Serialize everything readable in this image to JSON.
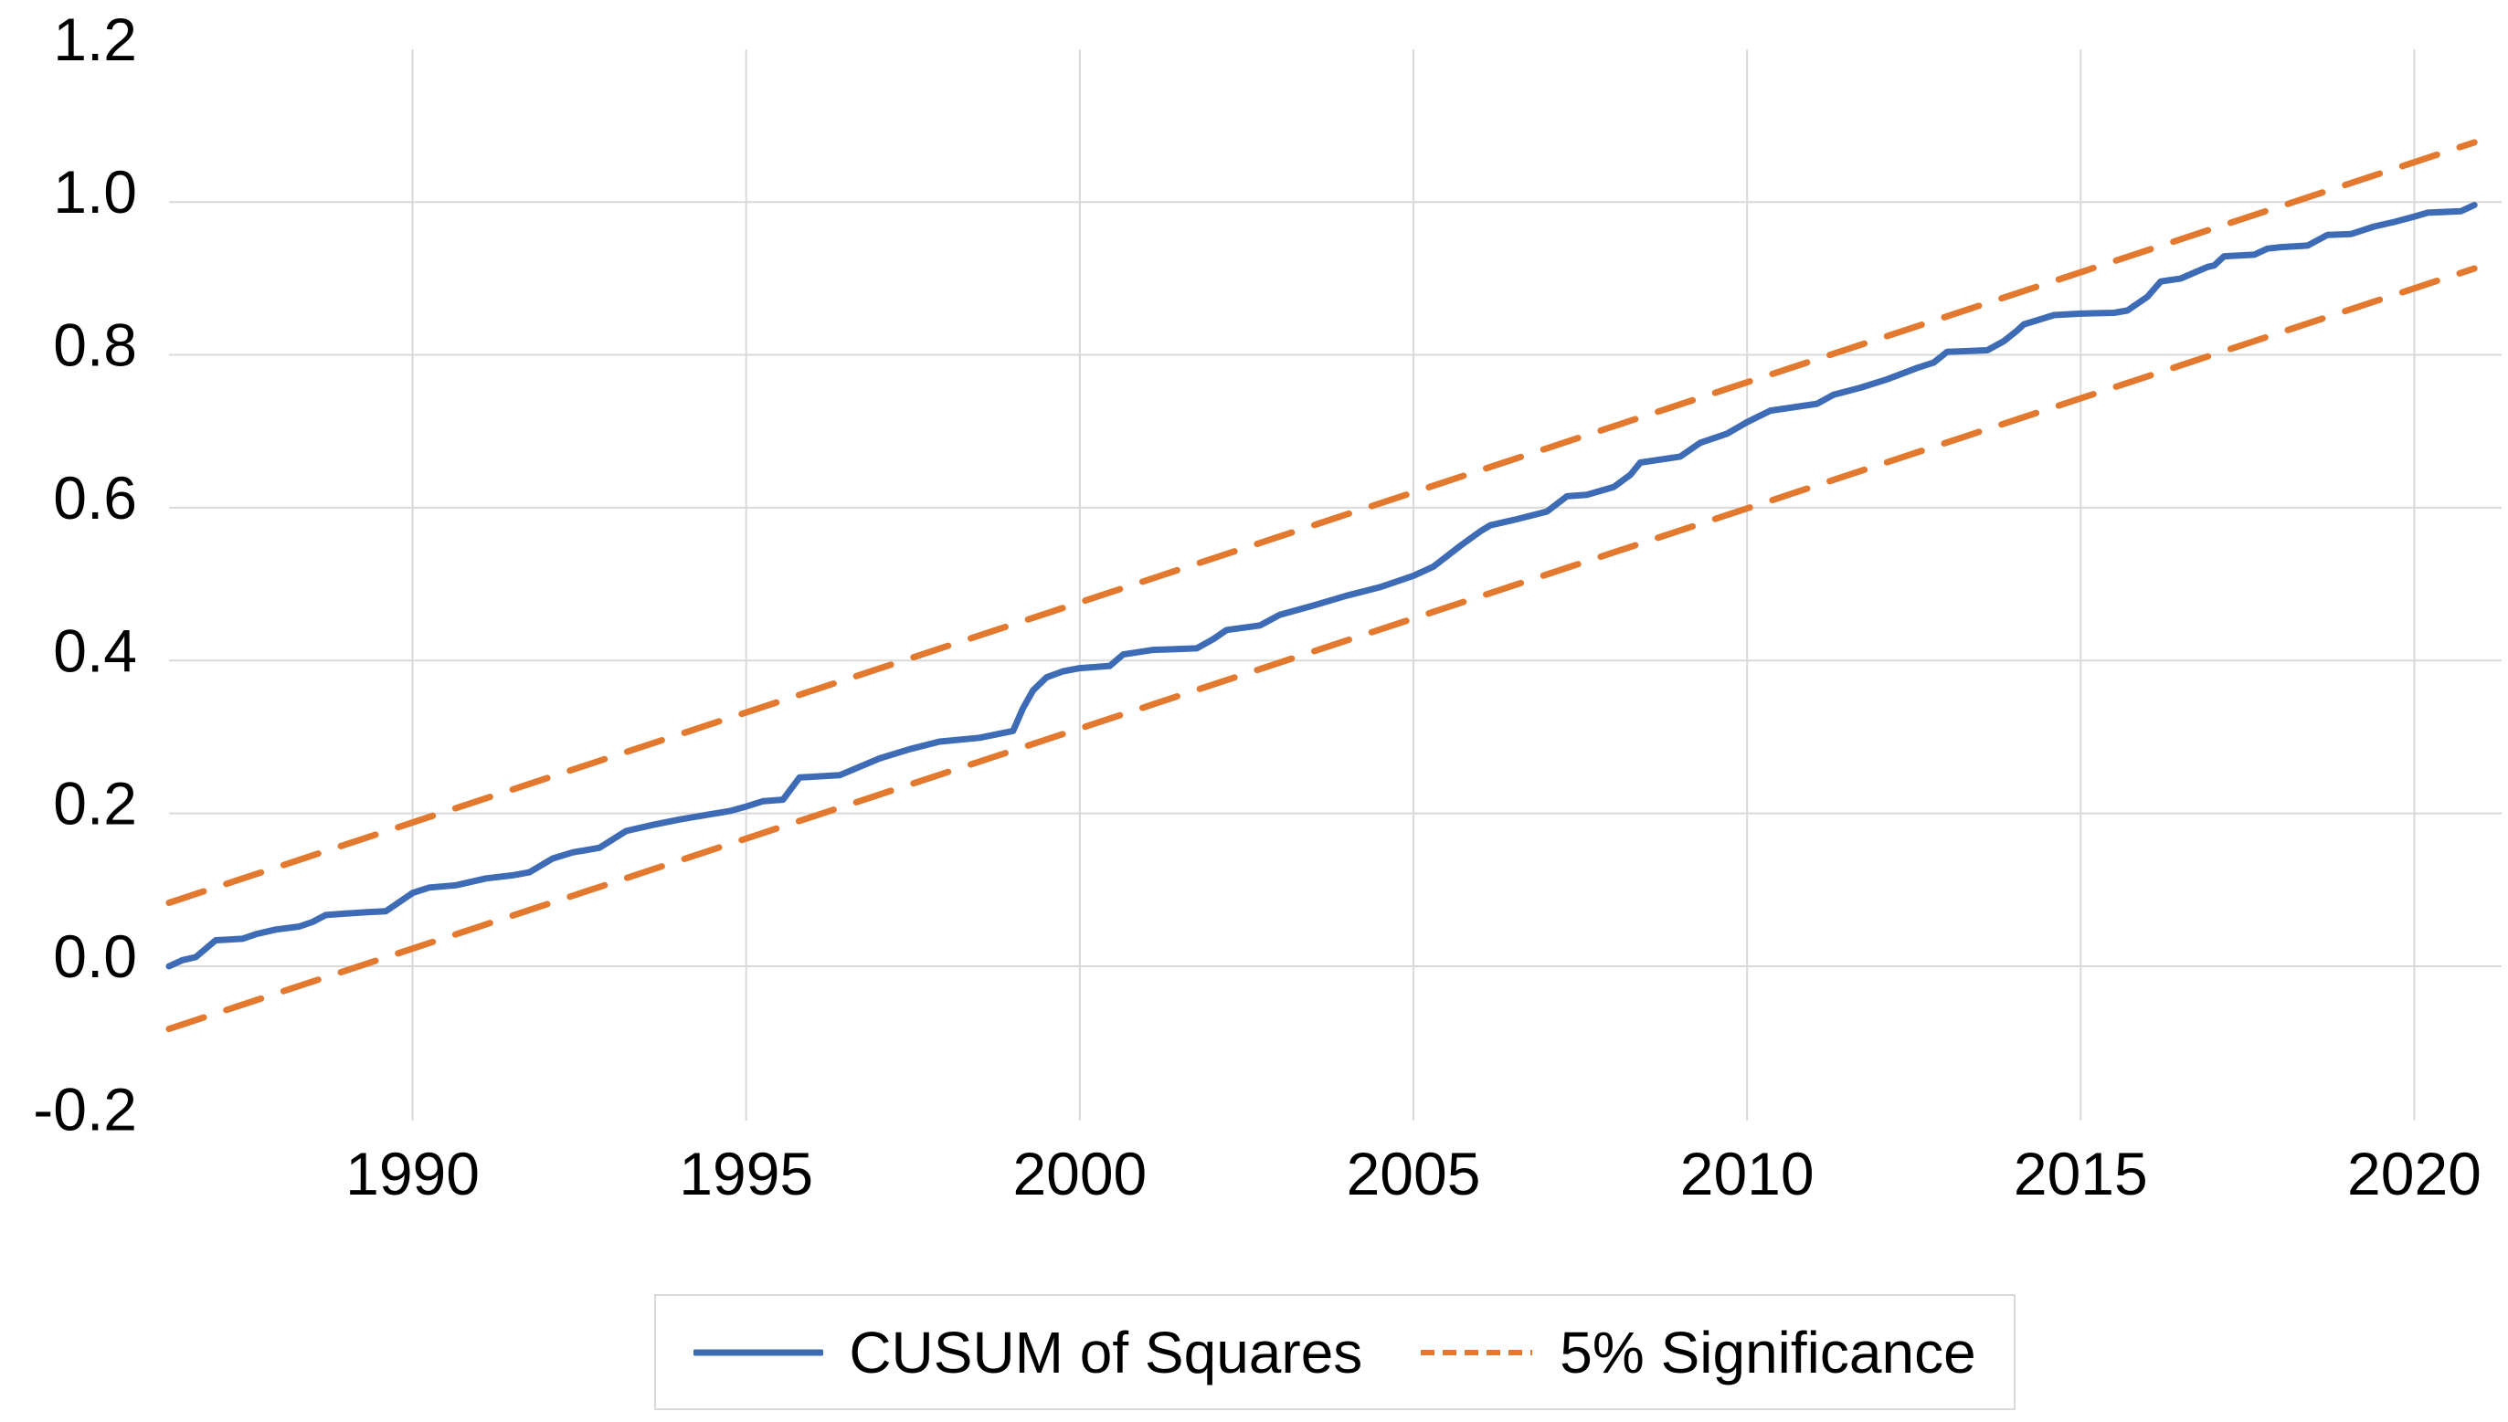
{
  "chart_data": {
    "type": "line",
    "title": "",
    "x_axis": {
      "range": [
        1986.35,
        2020.9
      ],
      "ticks": [
        1990,
        1995,
        2000,
        2005,
        2010,
        2015,
        2020
      ]
    },
    "y_axis": {
      "range": [
        -0.2,
        1.2
      ],
      "ticks": [
        -0.2,
        0.0,
        0.2,
        0.4,
        0.6,
        0.8,
        1.0,
        1.2
      ]
    },
    "grid": true,
    "legend_position": "bottom-center",
    "series": [
      {
        "name": "CUSUM of Squares",
        "style": "solid",
        "color": "#3D6BB5",
        "points": [
          [
            1986.35,
            0.0
          ],
          [
            1986.55,
            0.008
          ],
          [
            1986.75,
            0.012
          ],
          [
            1987.05,
            0.034
          ],
          [
            1987.45,
            0.036
          ],
          [
            1987.65,
            0.042
          ],
          [
            1987.95,
            0.048
          ],
          [
            1988.3,
            0.052
          ],
          [
            1988.5,
            0.058
          ],
          [
            1988.7,
            0.067
          ],
          [
            1989.0,
            0.069
          ],
          [
            1989.35,
            0.071
          ],
          [
            1989.6,
            0.072
          ],
          [
            1990.0,
            0.096
          ],
          [
            1990.25,
            0.103
          ],
          [
            1990.65,
            0.106
          ],
          [
            1991.1,
            0.115
          ],
          [
            1991.5,
            0.119
          ],
          [
            1991.75,
            0.123
          ],
          [
            1992.1,
            0.141
          ],
          [
            1992.4,
            0.149
          ],
          [
            1992.8,
            0.155
          ],
          [
            1993.2,
            0.177
          ],
          [
            1993.6,
            0.185
          ],
          [
            1994.0,
            0.192
          ],
          [
            1994.4,
            0.198
          ],
          [
            1994.75,
            0.203
          ],
          [
            1995.0,
            0.209
          ],
          [
            1995.25,
            0.216
          ],
          [
            1995.55,
            0.218
          ],
          [
            1995.8,
            0.247
          ],
          [
            1996.4,
            0.25
          ],
          [
            1997.0,
            0.272
          ],
          [
            1997.45,
            0.284
          ],
          [
            1997.9,
            0.294
          ],
          [
            1998.5,
            0.299
          ],
          [
            1999.0,
            0.308
          ],
          [
            1999.15,
            0.338
          ],
          [
            1999.3,
            0.361
          ],
          [
            1999.5,
            0.378
          ],
          [
            1999.75,
            0.386
          ],
          [
            2000.0,
            0.39
          ],
          [
            2000.45,
            0.393
          ],
          [
            2000.65,
            0.408
          ],
          [
            2001.1,
            0.414
          ],
          [
            2001.75,
            0.416
          ],
          [
            2002.0,
            0.428
          ],
          [
            2002.2,
            0.44
          ],
          [
            2002.7,
            0.446
          ],
          [
            2003.0,
            0.46
          ],
          [
            2003.5,
            0.472
          ],
          [
            2004.0,
            0.485
          ],
          [
            2004.5,
            0.496
          ],
          [
            2005.0,
            0.511
          ],
          [
            2005.3,
            0.523
          ],
          [
            2005.7,
            0.55
          ],
          [
            2006.0,
            0.569
          ],
          [
            2006.15,
            0.577
          ],
          [
            2006.55,
            0.585
          ],
          [
            2007.0,
            0.595
          ],
          [
            2007.3,
            0.615
          ],
          [
            2007.6,
            0.617
          ],
          [
            2008.0,
            0.627
          ],
          [
            2008.25,
            0.643
          ],
          [
            2008.4,
            0.659
          ],
          [
            2009.0,
            0.667
          ],
          [
            2009.3,
            0.685
          ],
          [
            2009.7,
            0.697
          ],
          [
            2010.0,
            0.712
          ],
          [
            2010.35,
            0.727
          ],
          [
            2011.05,
            0.736
          ],
          [
            2011.3,
            0.748
          ],
          [
            2011.7,
            0.757
          ],
          [
            2012.1,
            0.768
          ],
          [
            2012.55,
            0.783
          ],
          [
            2012.8,
            0.79
          ],
          [
            2013.0,
            0.804
          ],
          [
            2013.6,
            0.806
          ],
          [
            2013.85,
            0.818
          ],
          [
            2014.05,
            0.832
          ],
          [
            2014.15,
            0.84
          ],
          [
            2014.6,
            0.852
          ],
          [
            2015.0,
            0.854
          ],
          [
            2015.5,
            0.855
          ],
          [
            2015.7,
            0.858
          ],
          [
            2016.0,
            0.876
          ],
          [
            2016.2,
            0.896
          ],
          [
            2016.5,
            0.9
          ],
          [
            2016.9,
            0.915
          ],
          [
            2017.0,
            0.917
          ],
          [
            2017.15,
            0.929
          ],
          [
            2017.6,
            0.931
          ],
          [
            2017.8,
            0.939
          ],
          [
            2018.0,
            0.941
          ],
          [
            2018.4,
            0.943
          ],
          [
            2018.7,
            0.957
          ],
          [
            2019.05,
            0.958
          ],
          [
            2019.4,
            0.968
          ],
          [
            2019.7,
            0.974
          ],
          [
            2020.0,
            0.981
          ],
          [
            2020.2,
            0.986
          ],
          [
            2020.7,
            0.988
          ],
          [
            2020.9,
            0.996
          ]
        ]
      },
      {
        "name": "5% Significance (upper band)",
        "style": "dashed",
        "color": "#E2792F",
        "points": [
          [
            1986.35,
            0.083
          ],
          [
            2020.9,
            1.078
          ]
        ]
      },
      {
        "name": "5% Significance (lower band)",
        "style": "dashed",
        "color": "#E2792F",
        "points": [
          [
            1986.35,
            -0.082
          ],
          [
            2020.9,
            0.913
          ]
        ]
      }
    ],
    "legend": {
      "entries": [
        {
          "label": "CUSUM of Squares",
          "swatch": "solid-line",
          "color": "#3D6BB5"
        },
        {
          "label": "5% Significance",
          "swatch": "dashed-line",
          "color": "#E2792F"
        }
      ]
    }
  },
  "colors": {
    "background": "#FFFFFF",
    "gridline": "#D9D9D9",
    "axis_text": "#000000"
  }
}
